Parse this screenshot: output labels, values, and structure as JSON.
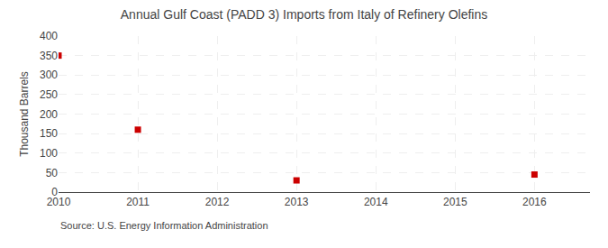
{
  "chart_data": {
    "type": "scatter",
    "title": "Annual Gulf Coast (PADD 3) Imports from Italy of Refinery Olefins",
    "y_label": "Thousand Barrels",
    "annotations": [
      "Source: U.S. Energy Information Administration"
    ],
    "x": [
      2010,
      2011,
      2013,
      2016
    ],
    "values": [
      350,
      160,
      30,
      45
    ],
    "color": "#cc0000",
    "marker": "square",
    "xlim": [
      2010,
      2016.7
    ],
    "xticks": [
      2010,
      2011,
      2012,
      2013,
      2014,
      2015,
      2016
    ],
    "ylim": [
      0,
      400
    ],
    "yticks": [
      0,
      50,
      100,
      150,
      200,
      250,
      300,
      350,
      400
    ],
    "grid": true
  }
}
